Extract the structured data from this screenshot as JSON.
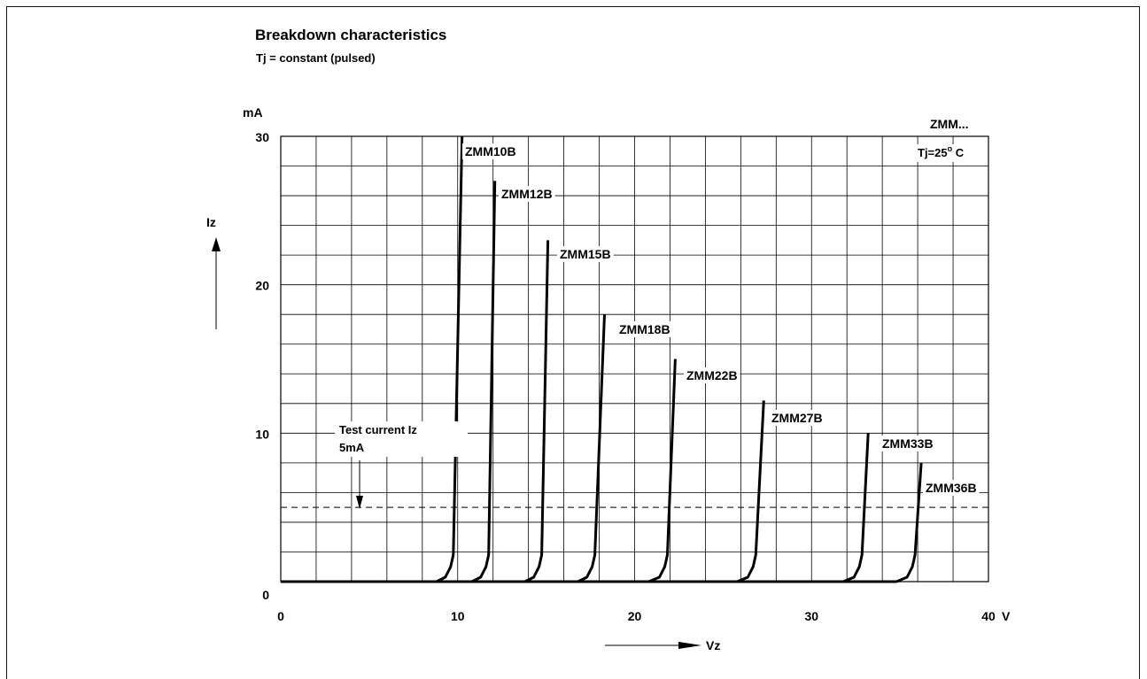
{
  "chart_data": {
    "type": "line",
    "title": "Breakdown characteristics",
    "subtitle": "Tj = constant (pulsed)",
    "ylabel_unit": "mA",
    "ylabel": "Iz",
    "xlabel_unit": "V",
    "xlabel": "Vz",
    "xlim": [
      0,
      40
    ],
    "ylim": [
      0,
      30
    ],
    "x_ticks": [
      0,
      10,
      20,
      30,
      40
    ],
    "y_ticks": [
      0,
      10,
      20,
      30
    ],
    "grid": true,
    "series_family": "ZMM...",
    "temperature": "Tj=25°C",
    "test_current": {
      "value": 5,
      "label_line1": "Test current Iz",
      "label_line2": "5mA",
      "line_style": "dashed"
    },
    "series": [
      {
        "name": "ZMM10B",
        "x": [
          0,
          8.8,
          9.3,
          9.6,
          9.75,
          10.25
        ],
        "y": [
          0,
          0,
          0.3,
          1,
          1.8,
          30
        ]
      },
      {
        "name": "ZMM12B",
        "x": [
          0,
          10.8,
          11.3,
          11.6,
          11.75,
          12.1
        ],
        "y": [
          0,
          0,
          0.3,
          1,
          1.8,
          27
        ]
      },
      {
        "name": "ZMM15B",
        "x": [
          0,
          13.8,
          14.3,
          14.6,
          14.75,
          15.1
        ],
        "y": [
          0,
          0,
          0.3,
          1,
          1.8,
          23
        ]
      },
      {
        "name": "ZMM18B",
        "x": [
          0,
          16.8,
          17.3,
          17.6,
          17.75,
          18.3
        ],
        "y": [
          0,
          0,
          0.3,
          1,
          1.8,
          18
        ]
      },
      {
        "name": "ZMM22B",
        "x": [
          0,
          20.8,
          21.4,
          21.7,
          21.85,
          22.3
        ],
        "y": [
          0,
          0,
          0.3,
          1,
          1.8,
          15
        ]
      },
      {
        "name": "ZMM27B",
        "x": [
          0,
          25.8,
          26.4,
          26.7,
          26.85,
          27.3
        ],
        "y": [
          0,
          0,
          0.3,
          1,
          1.8,
          12.2
        ]
      },
      {
        "name": "ZMM33B",
        "x": [
          0,
          31.8,
          32.4,
          32.7,
          32.85,
          33.2
        ],
        "y": [
          0,
          0,
          0.3,
          1,
          1.8,
          10
        ]
      },
      {
        "name": "ZMM36B",
        "x": [
          0,
          34.8,
          35.4,
          35.7,
          35.85,
          36.2
        ],
        "y": [
          0,
          0,
          0.3,
          1,
          1.8,
          8
        ]
      }
    ]
  }
}
